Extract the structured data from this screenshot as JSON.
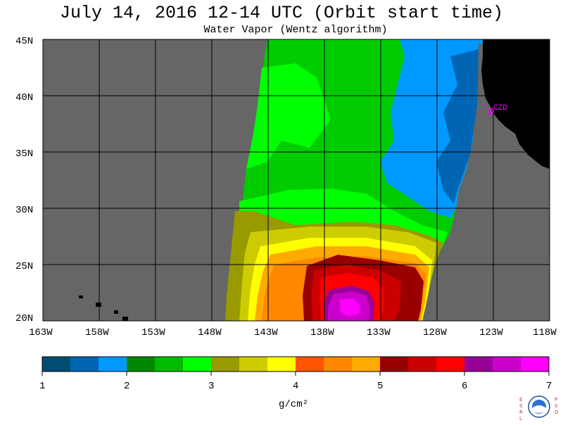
{
  "title": "July 14, 2016  12-14 UTC  (Orbit start time)",
  "subtitle": "Water Vapor (Wentz algorithm)",
  "map": {
    "lon_ticks": [
      "163W",
      "158W",
      "153W",
      "148W",
      "143W",
      "138W",
      "133W",
      "128W",
      "123W",
      "118W"
    ],
    "lat_ticks": [
      "45N",
      "40N",
      "35N",
      "30N",
      "25N",
      "20N"
    ],
    "station_label": "CZD",
    "station_color": "#ff00ff",
    "nodata_color": "#666666",
    "land_color": "#000000"
  },
  "colorbar": {
    "colors": [
      "#004d73",
      "#0066b3",
      "#0099ff",
      "#008800",
      "#00bb00",
      "#00ff00",
      "#999900",
      "#cccc00",
      "#ffff00",
      "#ff5500",
      "#ff8800",
      "#ffaa00",
      "#990000",
      "#cc0000",
      "#ff0000",
      "#990099",
      "#cc00cc",
      "#ff00ff"
    ],
    "labels": [
      "1",
      "2",
      "3",
      "4",
      "5",
      "6",
      "7"
    ],
    "unit": "g/cm²"
  },
  "logo": {
    "left_text": "ESRL",
    "right_text": "PSD",
    "center_text": "NOAA"
  }
}
